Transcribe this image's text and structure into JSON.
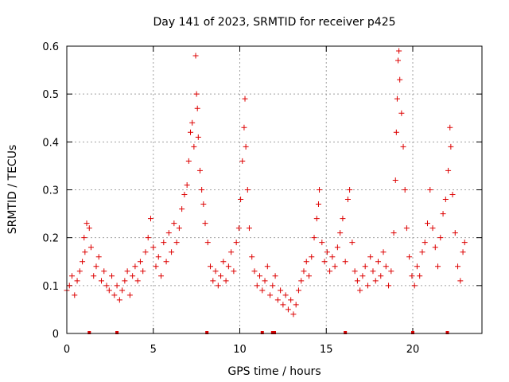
{
  "chart_data": {
    "type": "scatter",
    "title": "Day 141 of 2023, SRMTID for receiver p425",
    "xlabel": "GPS time / hours",
    "ylabel": "SRMTID / TECUs",
    "xlim": [
      0,
      24
    ],
    "ylim": [
      0,
      0.6
    ],
    "xticks": [
      0,
      5,
      10,
      15,
      20
    ],
    "xtick_labels": [
      "0",
      "5",
      "10",
      "15",
      "20"
    ],
    "yticks": [
      0,
      0.1,
      0.2,
      0.3,
      0.4,
      0.5,
      0.6
    ],
    "ytick_labels": [
      "0",
      "0.1",
      "0.2",
      "0.3",
      "0.4",
      "0.5",
      "0.6"
    ],
    "grid": true,
    "marker": "+",
    "series_color": "#dd0000",
    "baseline_markers_x": [
      1.3,
      2.9,
      8.1,
      11.3,
      11.9,
      12.0,
      16.1,
      20.0,
      22.0
    ],
    "series": [
      {
        "name": "SRMTID",
        "points": [
          [
            0.0,
            0.09
          ],
          [
            0.15,
            0.1
          ],
          [
            0.3,
            0.12
          ],
          [
            0.45,
            0.08
          ],
          [
            0.6,
            0.11
          ],
          [
            0.75,
            0.13
          ],
          [
            0.9,
            0.15
          ],
          [
            1.0,
            0.2
          ],
          [
            1.05,
            0.17
          ],
          [
            1.15,
            0.23
          ],
          [
            1.3,
            0.22
          ],
          [
            1.4,
            0.18
          ],
          [
            1.55,
            0.12
          ],
          [
            1.7,
            0.14
          ],
          [
            1.85,
            0.16
          ],
          [
            2.0,
            0.11
          ],
          [
            2.15,
            0.13
          ],
          [
            2.3,
            0.1
          ],
          [
            2.45,
            0.09
          ],
          [
            2.6,
            0.12
          ],
          [
            2.75,
            0.08
          ],
          [
            2.9,
            0.1
          ],
          [
            3.05,
            0.07
          ],
          [
            3.2,
            0.09
          ],
          [
            3.35,
            0.11
          ],
          [
            3.5,
            0.13
          ],
          [
            3.65,
            0.08
          ],
          [
            3.8,
            0.12
          ],
          [
            3.95,
            0.14
          ],
          [
            4.1,
            0.11
          ],
          [
            4.25,
            0.15
          ],
          [
            4.4,
            0.13
          ],
          [
            4.55,
            0.17
          ],
          [
            4.7,
            0.2
          ],
          [
            4.85,
            0.24
          ],
          [
            5.0,
            0.18
          ],
          [
            5.15,
            0.14
          ],
          [
            5.3,
            0.16
          ],
          [
            5.45,
            0.12
          ],
          [
            5.6,
            0.19
          ],
          [
            5.75,
            0.15
          ],
          [
            5.9,
            0.21
          ],
          [
            6.05,
            0.17
          ],
          [
            6.2,
            0.23
          ],
          [
            6.35,
            0.19
          ],
          [
            6.5,
            0.22
          ],
          [
            6.65,
            0.26
          ],
          [
            6.8,
            0.29
          ],
          [
            6.95,
            0.31
          ],
          [
            7.05,
            0.36
          ],
          [
            7.15,
            0.42
          ],
          [
            7.25,
            0.44
          ],
          [
            7.35,
            0.39
          ],
          [
            7.45,
            0.58
          ],
          [
            7.5,
            0.5
          ],
          [
            7.55,
            0.47
          ],
          [
            7.6,
            0.41
          ],
          [
            7.7,
            0.34
          ],
          [
            7.8,
            0.3
          ],
          [
            7.9,
            0.27
          ],
          [
            8.0,
            0.23
          ],
          [
            8.15,
            0.19
          ],
          [
            8.3,
            0.14
          ],
          [
            8.45,
            0.11
          ],
          [
            8.6,
            0.13
          ],
          [
            8.75,
            0.1
          ],
          [
            8.9,
            0.12
          ],
          [
            9.05,
            0.15
          ],
          [
            9.2,
            0.11
          ],
          [
            9.35,
            0.14
          ],
          [
            9.5,
            0.17
          ],
          [
            9.65,
            0.13
          ],
          [
            9.8,
            0.19
          ],
          [
            9.95,
            0.22
          ],
          [
            10.05,
            0.28
          ],
          [
            10.15,
            0.36
          ],
          [
            10.25,
            0.43
          ],
          [
            10.3,
            0.49
          ],
          [
            10.35,
            0.39
          ],
          [
            10.45,
            0.3
          ],
          [
            10.55,
            0.22
          ],
          [
            10.7,
            0.16
          ],
          [
            10.85,
            0.13
          ],
          [
            11.0,
            0.1
          ],
          [
            11.15,
            0.12
          ],
          [
            11.3,
            0.09
          ],
          [
            11.45,
            0.11
          ],
          [
            11.6,
            0.14
          ],
          [
            11.75,
            0.08
          ],
          [
            11.9,
            0.1
          ],
          [
            12.05,
            0.12
          ],
          [
            12.2,
            0.07
          ],
          [
            12.35,
            0.09
          ],
          [
            12.5,
            0.06
          ],
          [
            12.65,
            0.08
          ],
          [
            12.8,
            0.05
          ],
          [
            12.95,
            0.07
          ],
          [
            13.1,
            0.04
          ],
          [
            13.25,
            0.06
          ],
          [
            13.4,
            0.09
          ],
          [
            13.55,
            0.11
          ],
          [
            13.7,
            0.13
          ],
          [
            13.85,
            0.15
          ],
          [
            14.0,
            0.12
          ],
          [
            14.15,
            0.16
          ],
          [
            14.3,
            0.2
          ],
          [
            14.45,
            0.24
          ],
          [
            14.55,
            0.27
          ],
          [
            14.6,
            0.3
          ],
          [
            14.75,
            0.19
          ],
          [
            14.9,
            0.15
          ],
          [
            15.05,
            0.17
          ],
          [
            15.2,
            0.13
          ],
          [
            15.35,
            0.16
          ],
          [
            15.5,
            0.14
          ],
          [
            15.65,
            0.18
          ],
          [
            15.8,
            0.21
          ],
          [
            15.95,
            0.24
          ],
          [
            16.1,
            0.15
          ],
          [
            16.25,
            0.28
          ],
          [
            16.35,
            0.3
          ],
          [
            16.5,
            0.19
          ],
          [
            16.65,
            0.13
          ],
          [
            16.8,
            0.11
          ],
          [
            16.95,
            0.09
          ],
          [
            17.1,
            0.12
          ],
          [
            17.25,
            0.14
          ],
          [
            17.4,
            0.1
          ],
          [
            17.55,
            0.16
          ],
          [
            17.7,
            0.13
          ],
          [
            17.85,
            0.11
          ],
          [
            18.0,
            0.15
          ],
          [
            18.15,
            0.12
          ],
          [
            18.3,
            0.17
          ],
          [
            18.45,
            0.14
          ],
          [
            18.6,
            0.1
          ],
          [
            18.75,
            0.13
          ],
          [
            18.9,
            0.21
          ],
          [
            19.0,
            0.32
          ],
          [
            19.05,
            0.42
          ],
          [
            19.1,
            0.49
          ],
          [
            19.15,
            0.57
          ],
          [
            19.2,
            0.59
          ],
          [
            19.25,
            0.53
          ],
          [
            19.35,
            0.46
          ],
          [
            19.45,
            0.39
          ],
          [
            19.55,
            0.3
          ],
          [
            19.65,
            0.22
          ],
          [
            19.8,
            0.16
          ],
          [
            19.95,
            0.12
          ],
          [
            20.1,
            0.1
          ],
          [
            20.25,
            0.14
          ],
          [
            20.4,
            0.12
          ],
          [
            20.55,
            0.17
          ],
          [
            20.7,
            0.19
          ],
          [
            20.85,
            0.23
          ],
          [
            21.0,
            0.3
          ],
          [
            21.15,
            0.22
          ],
          [
            21.3,
            0.18
          ],
          [
            21.45,
            0.14
          ],
          [
            21.6,
            0.2
          ],
          [
            21.75,
            0.25
          ],
          [
            21.9,
            0.28
          ],
          [
            22.05,
            0.34
          ],
          [
            22.15,
            0.43
          ],
          [
            22.2,
            0.39
          ],
          [
            22.3,
            0.29
          ],
          [
            22.45,
            0.21
          ],
          [
            22.6,
            0.14
          ],
          [
            22.75,
            0.11
          ],
          [
            22.9,
            0.17
          ],
          [
            23.0,
            0.19
          ]
        ]
      }
    ]
  }
}
